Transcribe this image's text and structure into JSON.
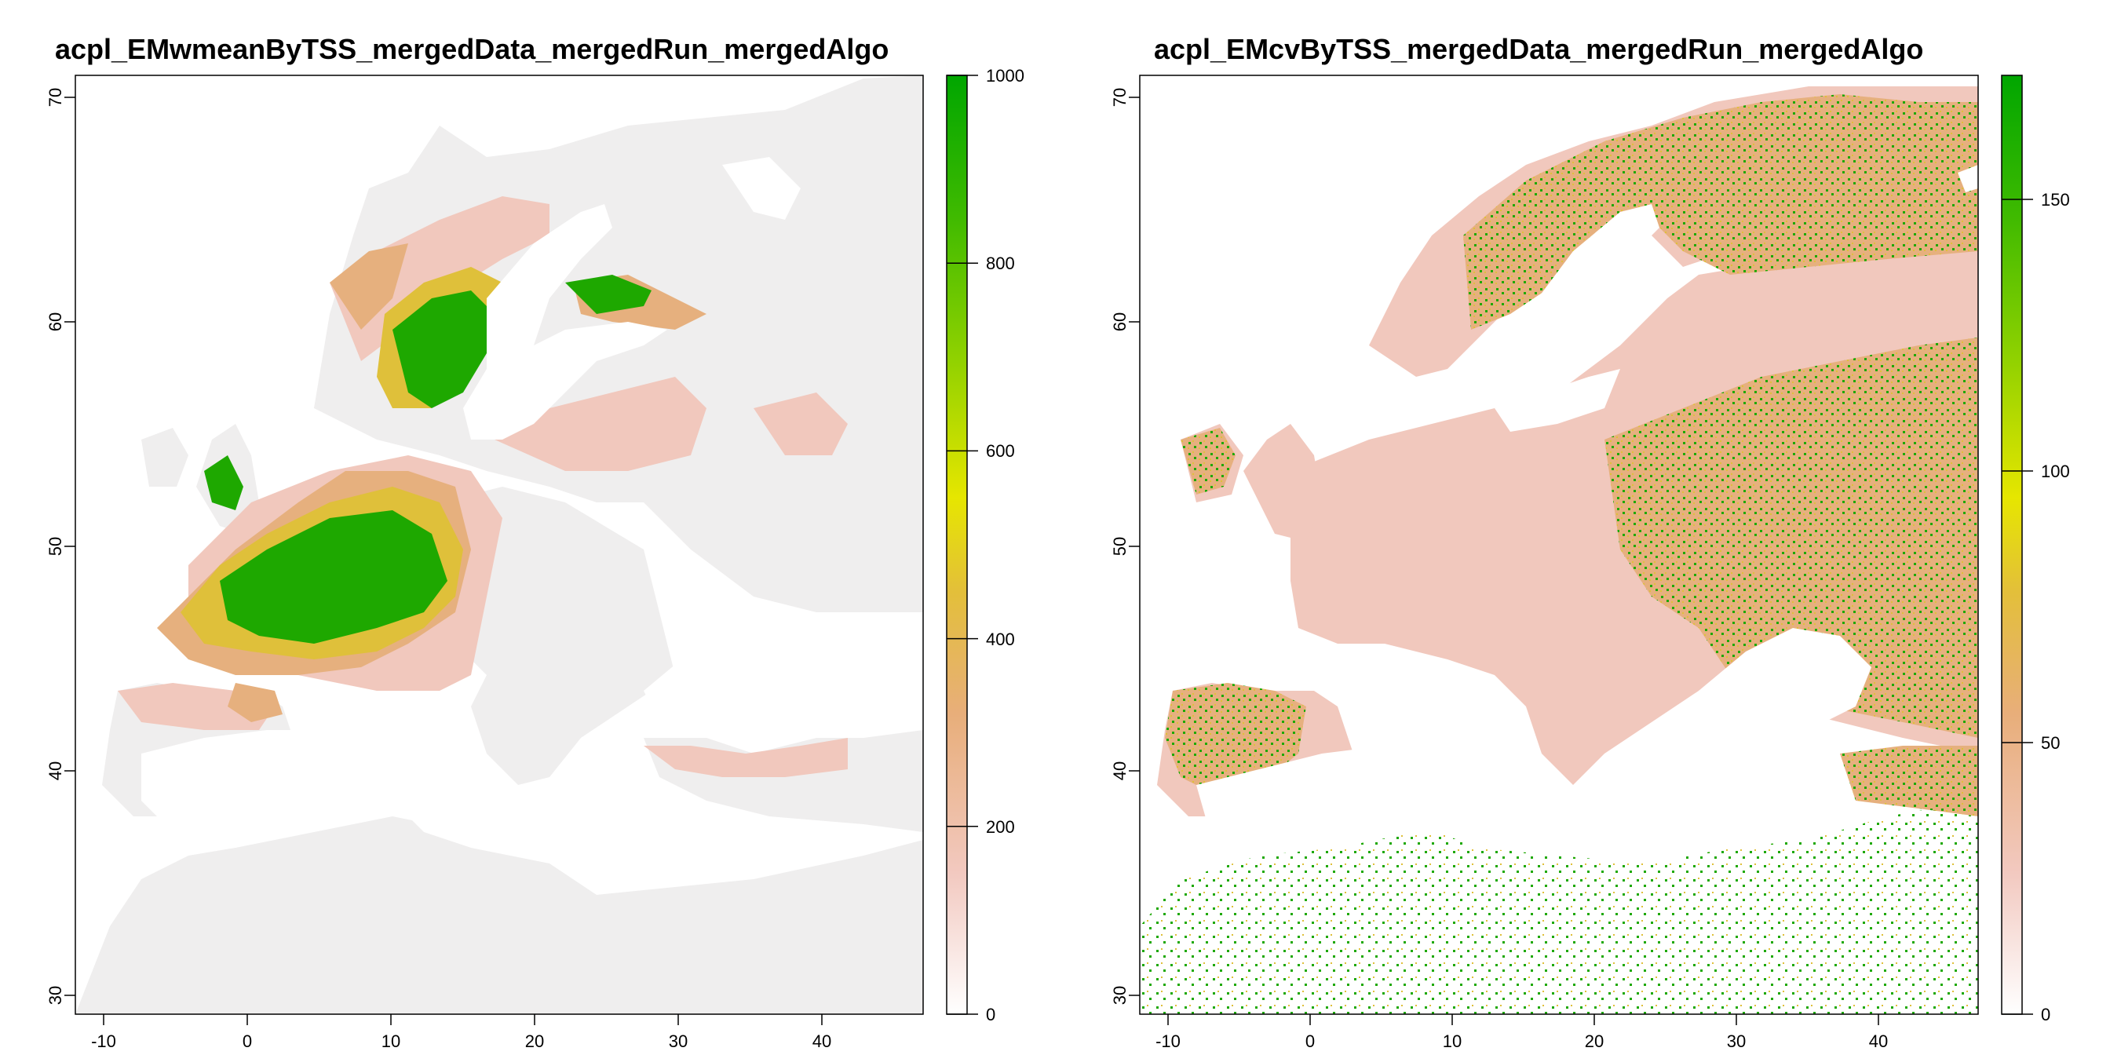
{
  "panels": [
    {
      "title": "acpl_EMwmeanByTSS_mergedData_mergedRun_mergedAlgo",
      "x_ticks": [
        "-10",
        "0",
        "10",
        "20",
        "30",
        "40"
      ],
      "y_ticks": [
        "30",
        "40",
        "50",
        "60",
        "70"
      ],
      "legend_ticks": [
        "0",
        "200",
        "400",
        "600",
        "800",
        "1000"
      ],
      "legend_colors": [
        "#ffffff",
        "#f2c9c0",
        "#e8ae7a",
        "#e3bf3a",
        "#e6e600",
        "#8fd100",
        "#3fba00",
        "#00a600"
      ],
      "scale_range": [
        0,
        1000
      ]
    },
    {
      "title": "acpl_EMcvByTSS_mergedData_mergedRun_mergedAlgo",
      "x_ticks": [
        "-10",
        "0",
        "10",
        "20",
        "30",
        "40"
      ],
      "y_ticks": [
        "30",
        "40",
        "50",
        "60",
        "70"
      ],
      "legend_ticks": [
        "0",
        "50",
        "100",
        "150"
      ],
      "legend_colors": [
        "#ffffff",
        "#f2c9c0",
        "#e8ae7a",
        "#e3bf3a",
        "#e6e600",
        "#8fd100",
        "#3fba00",
        "#00a600"
      ],
      "scale_range": [
        0,
        173
      ]
    }
  ],
  "map_extent": {
    "lon": [
      -12,
      47
    ],
    "lat": [
      29,
      71
    ]
  },
  "colors": {
    "background_land_low": "#f0efef",
    "pink": "#f1c8bd",
    "tan": "#e6b07e",
    "yellow": "#dfc03a",
    "green": "#1ea800"
  }
}
